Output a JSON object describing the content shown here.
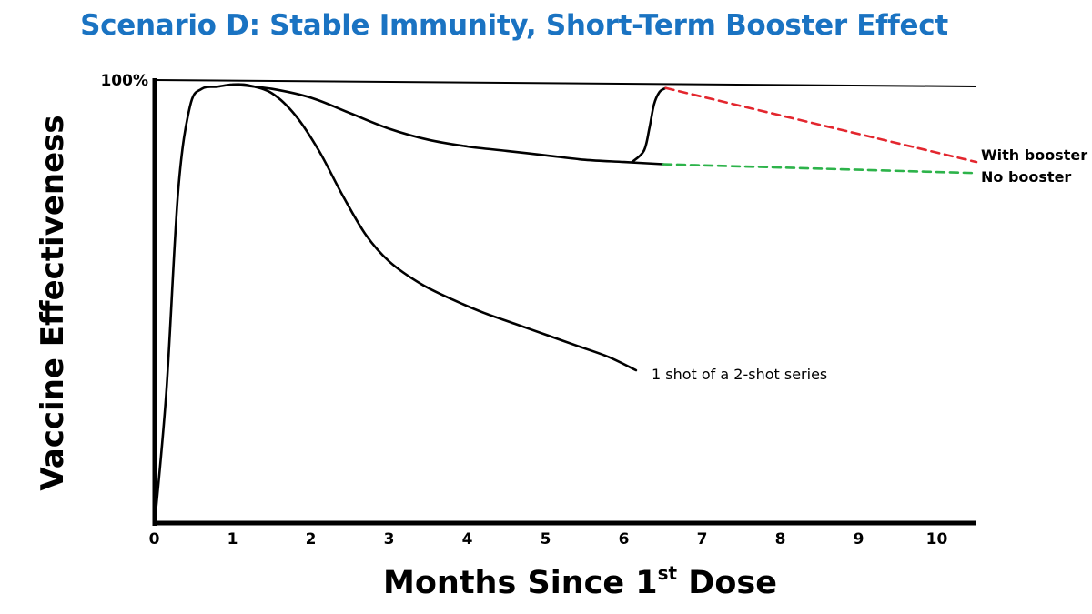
{
  "chart_data": {
    "type": "line",
    "title": "Scenario D: Stable Immunity, Short-Term Booster Effect",
    "xlabel": "Months Since 1",
    "xlabel_sup": "st",
    "xlabel_suffix": " Dose",
    "ylabel": "Vaccine Effectiveness",
    "xlim": [
      0,
      10.5
    ],
    "ylim": [
      0,
      100
    ],
    "x_ticks": [
      0,
      1,
      2,
      3,
      4,
      5,
      6,
      7,
      8,
      9,
      10
    ],
    "y_tick_label": "100%",
    "grid": false,
    "colors": {
      "title": "#1a73c2",
      "with_booster": "#e3262e",
      "no_booster": "#2db34a",
      "curve": "#000000"
    },
    "series": [
      {
        "name": "1 shot of a 2-shot series",
        "style": "solid",
        "x": [
          0,
          0.15,
          0.3,
          0.45,
          0.6,
          0.8,
          1.0,
          1.2,
          1.5,
          1.8,
          2.1,
          2.4,
          2.7,
          3.0,
          3.4,
          3.8,
          4.2,
          4.6,
          5.0,
          5.4,
          5.8,
          6.15
        ],
        "y": [
          0,
          30,
          75,
          94,
          98,
          98.5,
          99,
          98.8,
          97,
          92,
          84,
          74,
          65,
          59,
          54,
          50.5,
          47.5,
          45,
          42.5,
          40,
          37.5,
          34.5
        ]
      },
      {
        "name": "",
        "style": "solid",
        "x": [
          1.0,
          1.5,
          2.0,
          2.5,
          3.0,
          3.5,
          4.0,
          4.5,
          5.0,
          5.5,
          6.0,
          6.5
        ],
        "y": [
          99,
          98,
          96,
          92.5,
          89,
          86.5,
          85,
          84,
          83,
          82,
          81.5,
          81
        ]
      },
      {
        "name": "",
        "style": "solid",
        "x": [
          6.1,
          6.25,
          6.32,
          6.38,
          6.45,
          6.53
        ],
        "y": [
          81.5,
          84,
          89,
          94.5,
          97.3,
          98.2
        ]
      },
      {
        "name": "With booster",
        "style": "dashed",
        "x": [
          6.53,
          10.5
        ],
        "y": [
          98.2,
          81.5
        ]
      },
      {
        "name": "No booster",
        "style": "dashed",
        "x": [
          6.5,
          10.5
        ],
        "y": [
          81,
          79
        ]
      }
    ]
  }
}
